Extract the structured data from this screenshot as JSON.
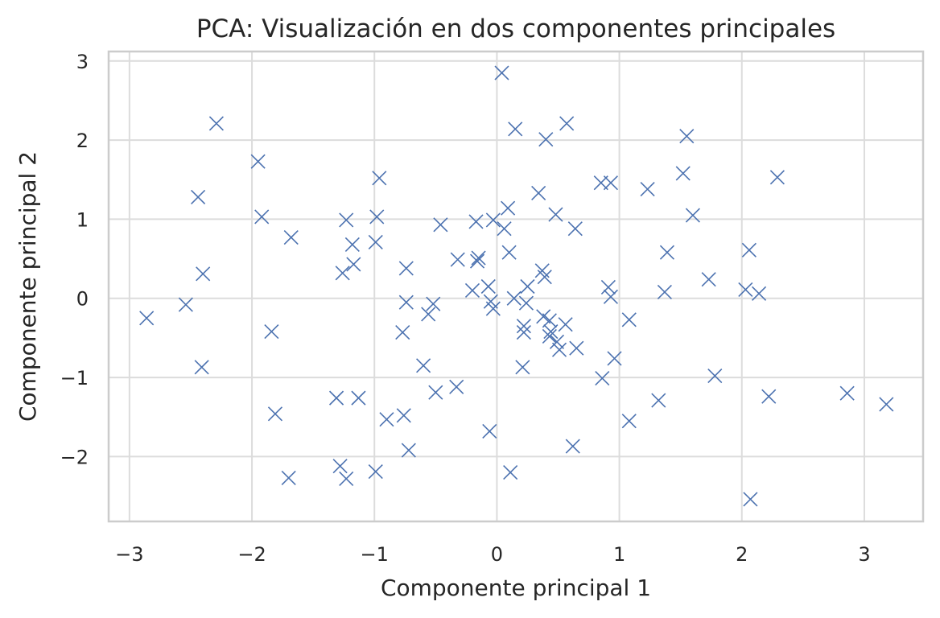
{
  "chart_data": {
    "type": "scatter",
    "title": "PCA: Visualización en dos componentes principales",
    "xlabel": "Componente principal 1",
    "ylabel": "Componente principal 2",
    "xlim": [
      -3.17,
      3.48
    ],
    "ylim": [
      -2.82,
      3.12
    ],
    "xticks": [
      -3,
      -2,
      -1,
      0,
      1,
      2,
      3
    ],
    "yticks": [
      -2,
      -1,
      0,
      1,
      2,
      3
    ],
    "xtick_labels": [
      "−3",
      "−2",
      "−1",
      "0",
      "1",
      "2",
      "3"
    ],
    "ytick_labels": [
      "−2",
      "−1",
      "0",
      "1",
      "2",
      "3"
    ],
    "grid": true,
    "marker": "x",
    "color": "#4c72b0",
    "points": [
      [
        0.04,
        2.85
      ],
      [
        -2.29,
        2.21
      ],
      [
        0.15,
        2.14
      ],
      [
        0.57,
        2.21
      ],
      [
        0.4,
        2.01
      ],
      [
        1.55,
        2.05
      ],
      [
        -1.95,
        1.73
      ],
      [
        -0.96,
        1.52
      ],
      [
        1.52,
        1.58
      ],
      [
        2.29,
        1.53
      ],
      [
        0.85,
        1.46
      ],
      [
        0.93,
        1.46
      ],
      [
        1.23,
        1.38
      ],
      [
        0.34,
        1.33
      ],
      [
        -2.44,
        1.28
      ],
      [
        0.09,
        1.14
      ],
      [
        0.48,
        1.06
      ],
      [
        1.6,
        1.05
      ],
      [
        -1.92,
        1.03
      ],
      [
        -0.98,
        1.03
      ],
      [
        -1.23,
        0.99
      ],
      [
        -0.17,
        0.97
      ],
      [
        -0.03,
        0.99
      ],
      [
        -0.46,
        0.93
      ],
      [
        0.06,
        0.88
      ],
      [
        0.64,
        0.88
      ],
      [
        -1.68,
        0.77
      ],
      [
        -0.99,
        0.71
      ],
      [
        -1.18,
        0.68
      ],
      [
        0.1,
        0.58
      ],
      [
        1.39,
        0.58
      ],
      [
        2.06,
        0.61
      ],
      [
        -0.32,
        0.49
      ],
      [
        -0.16,
        0.47
      ],
      [
        -0.15,
        0.51
      ],
      [
        -1.17,
        0.43
      ],
      [
        -0.74,
        0.38
      ],
      [
        0.37,
        0.35
      ],
      [
        -1.26,
        0.32
      ],
      [
        -2.4,
        0.31
      ],
      [
        0.39,
        0.27
      ],
      [
        1.73,
        0.24
      ],
      [
        -0.07,
        0.15
      ],
      [
        0.25,
        0.15
      ],
      [
        0.91,
        0.14
      ],
      [
        -0.2,
        0.1
      ],
      [
        1.37,
        0.08
      ],
      [
        2.03,
        0.11
      ],
      [
        2.14,
        0.06
      ],
      [
        0.93,
        0.02
      ],
      [
        0.14,
        0.0
      ],
      [
        -2.54,
        -0.08
      ],
      [
        -0.74,
        -0.05
      ],
      [
        -0.52,
        -0.07
      ],
      [
        -0.05,
        -0.04
      ],
      [
        0.24,
        -0.06
      ],
      [
        -0.03,
        -0.13
      ],
      [
        -2.86,
        -0.25
      ],
      [
        -0.56,
        -0.2
      ],
      [
        0.38,
        -0.23
      ],
      [
        0.43,
        -0.28
      ],
      [
        1.08,
        -0.27
      ],
      [
        0.56,
        -0.33
      ],
      [
        0.22,
        -0.35
      ],
      [
        -1.84,
        -0.42
      ],
      [
        -0.77,
        -0.43
      ],
      [
        0.22,
        -0.43
      ],
      [
        0.44,
        -0.42
      ],
      [
        0.43,
        -0.48
      ],
      [
        0.49,
        -0.55
      ],
      [
        0.51,
        -0.65
      ],
      [
        0.65,
        -0.63
      ],
      [
        0.96,
        -0.76
      ],
      [
        -0.6,
        -0.85
      ],
      [
        0.21,
        -0.87
      ],
      [
        -2.41,
        -0.87
      ],
      [
        1.78,
        -0.98
      ],
      [
        0.86,
        -1.01
      ],
      [
        -0.33,
        -1.12
      ],
      [
        -0.5,
        -1.19
      ],
      [
        -1.31,
        -1.26
      ],
      [
        -1.13,
        -1.26
      ],
      [
        1.32,
        -1.29
      ],
      [
        2.22,
        -1.24
      ],
      [
        2.86,
        -1.2
      ],
      [
        3.18,
        -1.34
      ],
      [
        -1.81,
        -1.46
      ],
      [
        -0.9,
        -1.53
      ],
      [
        -0.76,
        -1.48
      ],
      [
        1.08,
        -1.55
      ],
      [
        -0.06,
        -1.68
      ],
      [
        0.62,
        -1.87
      ],
      [
        -0.72,
        -1.92
      ],
      [
        -1.28,
        -2.12
      ],
      [
        -0.99,
        -2.19
      ],
      [
        0.11,
        -2.2
      ],
      [
        -1.7,
        -2.27
      ],
      [
        -1.23,
        -2.28
      ],
      [
        2.07,
        -2.54
      ]
    ]
  }
}
